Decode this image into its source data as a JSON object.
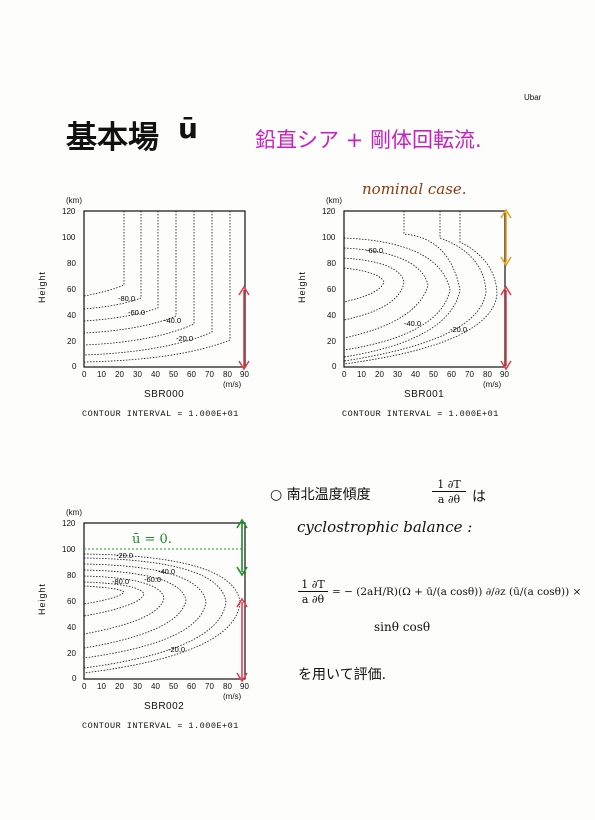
{
  "header": {
    "corner_label": "Ubar"
  },
  "title": {
    "main": "基本場",
    "symbol": "ū",
    "subtitle": "鉛直シア + 剛体回転流."
  },
  "annotations": {
    "nominal": "nominal case.",
    "ubar_zero": "ū = 0.",
    "note_line1_prefix": "○ 南北温度傾度",
    "note_frac_num": "1 ∂T",
    "note_frac_den": "a ∂θ",
    "note_line1_suffix": "は",
    "note_line2": "cyclostrophic balance :",
    "eq_lhs_num": "1 ∂T",
    "eq_lhs_den": "a ∂θ",
    "eq_rhs": "= − (2aH/R)(Ω + ū/(a cosθ)) ∂/∂z (ū/(a cosθ)) ×",
    "eq_tail": "sinθ cosθ",
    "note_line3": "を用いて評価."
  },
  "colors": {
    "subtitle": "#c81fbf",
    "nominal": "#8b3a12",
    "arrow_red": "#e2404f",
    "arrow_orange": "#e8a418",
    "arrow_green": "#1e8c2a",
    "green_dotted": "#1e9a2a",
    "ink": "#111111"
  },
  "panels": [
    {
      "id": "SBR000",
      "name": "SBR000",
      "interval": "CONTOUR INTERVAL = 1.000E+01",
      "y_unit": "(km)",
      "y_axis_label": "Height",
      "x_unit": "(m/s)",
      "x_ticks": [
        "0",
        "10",
        "20",
        "30",
        "40",
        "50",
        "60",
        "70",
        "80",
        "90"
      ],
      "y_ticks": [
        "0",
        "20",
        "40",
        "60",
        "80",
        "100",
        "120"
      ],
      "contour_labels": [
        "-80.0",
        "-60.0",
        "-40.0",
        "-20.0"
      ]
    },
    {
      "id": "SBR001",
      "name": "SBR001",
      "interval": "CONTOUR INTERVAL = 1.000E+01",
      "y_unit": "(km)",
      "y_axis_label": "Height",
      "x_unit": "(m/s)",
      "x_ticks": [
        "0",
        "10",
        "20",
        "30",
        "40",
        "50",
        "60",
        "70",
        "80",
        "90"
      ],
      "y_ticks": [
        "0",
        "20",
        "40",
        "60",
        "80",
        "100",
        "120"
      ],
      "contour_labels": [
        "-60.0",
        "-40.0",
        "-20.0"
      ]
    },
    {
      "id": "SBR002",
      "name": "SBR002",
      "interval": "CONTOUR INTERVAL = 1.000E+01",
      "y_unit": "(km)",
      "y_axis_label": "Height",
      "x_unit": "(m/s)",
      "x_ticks": [
        "0",
        "10",
        "20",
        "30",
        "40",
        "50",
        "60",
        "70",
        "80",
        "90"
      ],
      "y_ticks": [
        "0",
        "20",
        "40",
        "60",
        "80",
        "100",
        "120"
      ],
      "contour_labels": [
        "-20.0",
        "-40.0",
        "-60.0",
        "-80.0",
        "-20.0"
      ]
    }
  ]
}
